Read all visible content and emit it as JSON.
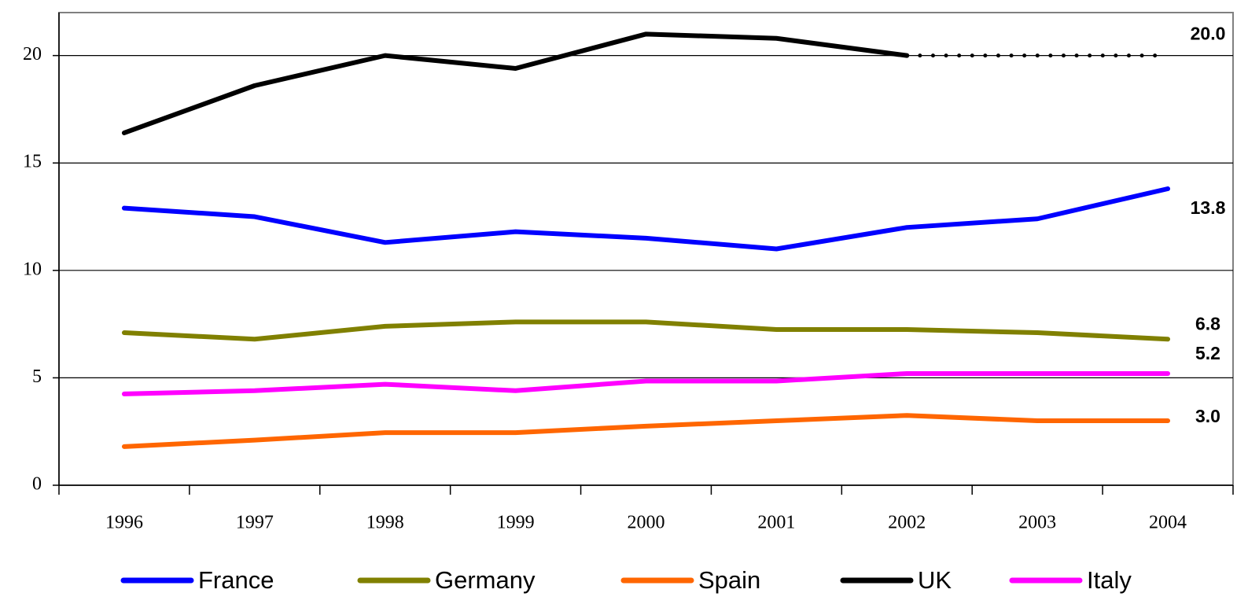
{
  "chart_data": {
    "type": "line",
    "categories": [
      "1996",
      "1997",
      "1998",
      "1999",
      "2000",
      "2001",
      "2002",
      "2003",
      "2004"
    ],
    "ylim": [
      0,
      22
    ],
    "yticks": [
      0,
      5,
      10,
      15,
      20
    ],
    "grid": true,
    "series": [
      {
        "name": "France",
        "color": "#0000ff",
        "values": [
          12.9,
          12.5,
          11.3,
          11.8,
          11.5,
          11.0,
          12.0,
          12.4,
          13.8
        ],
        "value_labels": [
          null,
          null,
          null,
          null,
          null,
          null,
          null,
          null,
          "13.8"
        ]
      },
      {
        "name": "Germany",
        "color": "#808000",
        "values": [
          7.1,
          6.8,
          7.4,
          7.6,
          7.6,
          7.25,
          7.25,
          7.1,
          6.8
        ],
        "value_labels": [
          null,
          null,
          null,
          null,
          null,
          null,
          null,
          null,
          "6.8"
        ]
      },
      {
        "name": "Spain",
        "color": "#ff6600",
        "values": [
          1.8,
          2.1,
          2.45,
          2.45,
          2.75,
          3.0,
          3.25,
          3.0,
          3.0
        ],
        "value_labels": [
          null,
          null,
          null,
          null,
          null,
          null,
          null,
          null,
          "3.0"
        ]
      },
      {
        "name": "UK",
        "color": "#000000",
        "values": [
          16.4,
          18.6,
          20.0,
          19.4,
          21.0,
          20.8,
          20.0,
          20.0,
          20.0
        ],
        "value_labels": [
          null,
          null,
          null,
          null,
          null,
          null,
          null,
          null,
          "20.0"
        ],
        "dotted_from": 6
      },
      {
        "name": "Italy",
        "color": "#ff00ff",
        "values": [
          4.25,
          4.4,
          4.7,
          4.4,
          4.85,
          4.85,
          5.2,
          5.2,
          5.2
        ],
        "value_labels": [
          null,
          null,
          null,
          null,
          null,
          null,
          null,
          null,
          "5.2"
        ]
      }
    ]
  }
}
